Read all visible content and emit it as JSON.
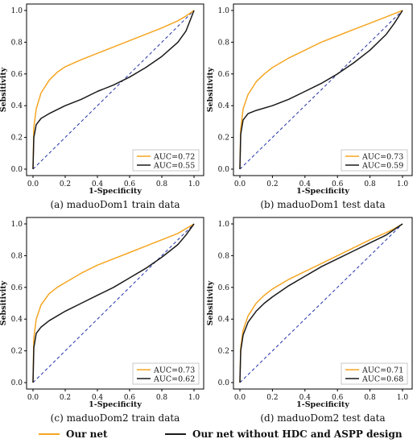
{
  "colors": {
    "our_net": "#f5a623",
    "baseline": "#1a1a1a",
    "random": "#2233aa"
  },
  "chart_data": [
    {
      "type": "line",
      "caption": "(a) maduoDom1 train data",
      "xlabel": "1-Specificity",
      "ylabel": "Sebsitivity",
      "xlim": [
        0,
        1
      ],
      "ylim": [
        0,
        1
      ],
      "xticks": [
        "0.0",
        "0.2",
        "0.4",
        "0.6",
        "0.8",
        "1.0"
      ],
      "yticks": [
        "0.0",
        "0.2",
        "0.4",
        "0.6",
        "0.8",
        "1.0"
      ],
      "legend_position": "bottom-right",
      "series": [
        {
          "name": "AUC=0.72",
          "color": "#f5a623",
          "x": [
            0,
            0.005,
            0.02,
            0.05,
            0.1,
            0.15,
            0.2,
            0.3,
            0.4,
            0.5,
            0.6,
            0.7,
            0.8,
            0.9,
            0.95,
            1.0
          ],
          "y": [
            0,
            0.26,
            0.38,
            0.48,
            0.56,
            0.61,
            0.645,
            0.69,
            0.73,
            0.77,
            0.81,
            0.85,
            0.89,
            0.935,
            0.965,
            1.0
          ]
        },
        {
          "name": "AUC=0.55",
          "color": "#1a1a1a",
          "x": [
            0,
            0.005,
            0.02,
            0.05,
            0.1,
            0.2,
            0.3,
            0.4,
            0.5,
            0.6,
            0.7,
            0.8,
            0.9,
            0.95,
            1.0
          ],
          "y": [
            0,
            0.2,
            0.28,
            0.32,
            0.35,
            0.4,
            0.44,
            0.49,
            0.53,
            0.58,
            0.64,
            0.71,
            0.8,
            0.87,
            1.0
          ]
        }
      ]
    },
    {
      "type": "line",
      "caption": "(b) maduoDom1 test data",
      "xlabel": "1-Specificity",
      "ylabel": "Sebsitivity",
      "xlim": [
        0,
        1
      ],
      "ylim": [
        0,
        1
      ],
      "xticks": [
        "0.0",
        "0.2",
        "0.4",
        "0.6",
        "0.8",
        "1.0"
      ],
      "yticks": [
        "0.0",
        "0.2",
        "0.4",
        "0.6",
        "0.8",
        "1.0"
      ],
      "legend_position": "bottom-right",
      "series": [
        {
          "name": "AUC=0.73",
          "color": "#f5a623",
          "x": [
            0,
            0.005,
            0.02,
            0.05,
            0.1,
            0.15,
            0.2,
            0.3,
            0.4,
            0.5,
            0.6,
            0.7,
            0.8,
            0.9,
            0.95,
            1.0
          ],
          "y": [
            0,
            0.25,
            0.38,
            0.47,
            0.55,
            0.6,
            0.64,
            0.7,
            0.75,
            0.8,
            0.84,
            0.88,
            0.92,
            0.96,
            0.98,
            1.0
          ]
        },
        {
          "name": "AUC=0.59",
          "color": "#1a1a1a",
          "x": [
            0,
            0.005,
            0.02,
            0.05,
            0.1,
            0.2,
            0.3,
            0.4,
            0.5,
            0.6,
            0.7,
            0.8,
            0.9,
            0.95,
            1.0
          ],
          "y": [
            0,
            0.22,
            0.31,
            0.35,
            0.37,
            0.4,
            0.44,
            0.49,
            0.54,
            0.6,
            0.67,
            0.75,
            0.85,
            0.92,
            1.0
          ]
        }
      ]
    },
    {
      "type": "line",
      "caption": "(c) maduoDom2 train data",
      "xlabel": "1-Specificity",
      "ylabel": "Sebsitivity",
      "xlim": [
        0,
        1
      ],
      "ylim": [
        0,
        1
      ],
      "xticks": [
        "0.0",
        "0.2",
        "0.4",
        "0.6",
        "0.8",
        "1.0"
      ],
      "yticks": [
        "0.0",
        "0.2",
        "0.4",
        "0.6",
        "0.8",
        "1.0"
      ],
      "legend_position": "bottom-right",
      "series": [
        {
          "name": "AUC=0.73",
          "color": "#f5a623",
          "x": [
            0,
            0.005,
            0.02,
            0.05,
            0.1,
            0.15,
            0.2,
            0.3,
            0.4,
            0.5,
            0.6,
            0.7,
            0.8,
            0.9,
            0.95,
            1.0
          ],
          "y": [
            0,
            0.28,
            0.4,
            0.49,
            0.56,
            0.6,
            0.63,
            0.69,
            0.74,
            0.78,
            0.82,
            0.86,
            0.9,
            0.94,
            0.97,
            1.0
          ]
        },
        {
          "name": "AUC=0.62",
          "color": "#1a1a1a",
          "x": [
            0,
            0.005,
            0.02,
            0.05,
            0.1,
            0.2,
            0.3,
            0.4,
            0.5,
            0.6,
            0.7,
            0.8,
            0.9,
            0.95,
            1.0
          ],
          "y": [
            0,
            0.22,
            0.31,
            0.35,
            0.39,
            0.45,
            0.5,
            0.55,
            0.6,
            0.66,
            0.72,
            0.79,
            0.87,
            0.93,
            1.0
          ]
        }
      ]
    },
    {
      "type": "line",
      "caption": "(d) maduoDom2 test data",
      "xlabel": "1-Specificity",
      "ylabel": "Sebsitivity",
      "xlim": [
        0,
        1
      ],
      "ylim": [
        0,
        1
      ],
      "xticks": [
        "0.0",
        "0.2",
        "0.4",
        "0.6",
        "0.8",
        "1.0"
      ],
      "yticks": [
        "0.0",
        "0.2",
        "0.4",
        "0.6",
        "0.8",
        "1.0"
      ],
      "legend_position": "bottom-right",
      "series": [
        {
          "name": "AUC=0.71",
          "color": "#f5a623",
          "x": [
            0,
            0.005,
            0.02,
            0.05,
            0.1,
            0.15,
            0.2,
            0.3,
            0.4,
            0.5,
            0.6,
            0.7,
            0.8,
            0.9,
            0.95,
            1.0
          ],
          "y": [
            0,
            0.22,
            0.33,
            0.42,
            0.5,
            0.55,
            0.59,
            0.65,
            0.7,
            0.75,
            0.8,
            0.85,
            0.9,
            0.945,
            0.97,
            1.0
          ]
        },
        {
          "name": "AUC=0.68",
          "color": "#1a1a1a",
          "x": [
            0,
            0.005,
            0.02,
            0.05,
            0.1,
            0.15,
            0.2,
            0.3,
            0.4,
            0.5,
            0.6,
            0.7,
            0.8,
            0.9,
            0.95,
            1.0
          ],
          "y": [
            0,
            0.2,
            0.3,
            0.38,
            0.45,
            0.5,
            0.54,
            0.61,
            0.67,
            0.73,
            0.78,
            0.83,
            0.88,
            0.93,
            0.965,
            1.0
          ]
        }
      ]
    }
  ],
  "legend": {
    "our_net": "Our net",
    "baseline": "Our net without HDC and ASPP design"
  }
}
